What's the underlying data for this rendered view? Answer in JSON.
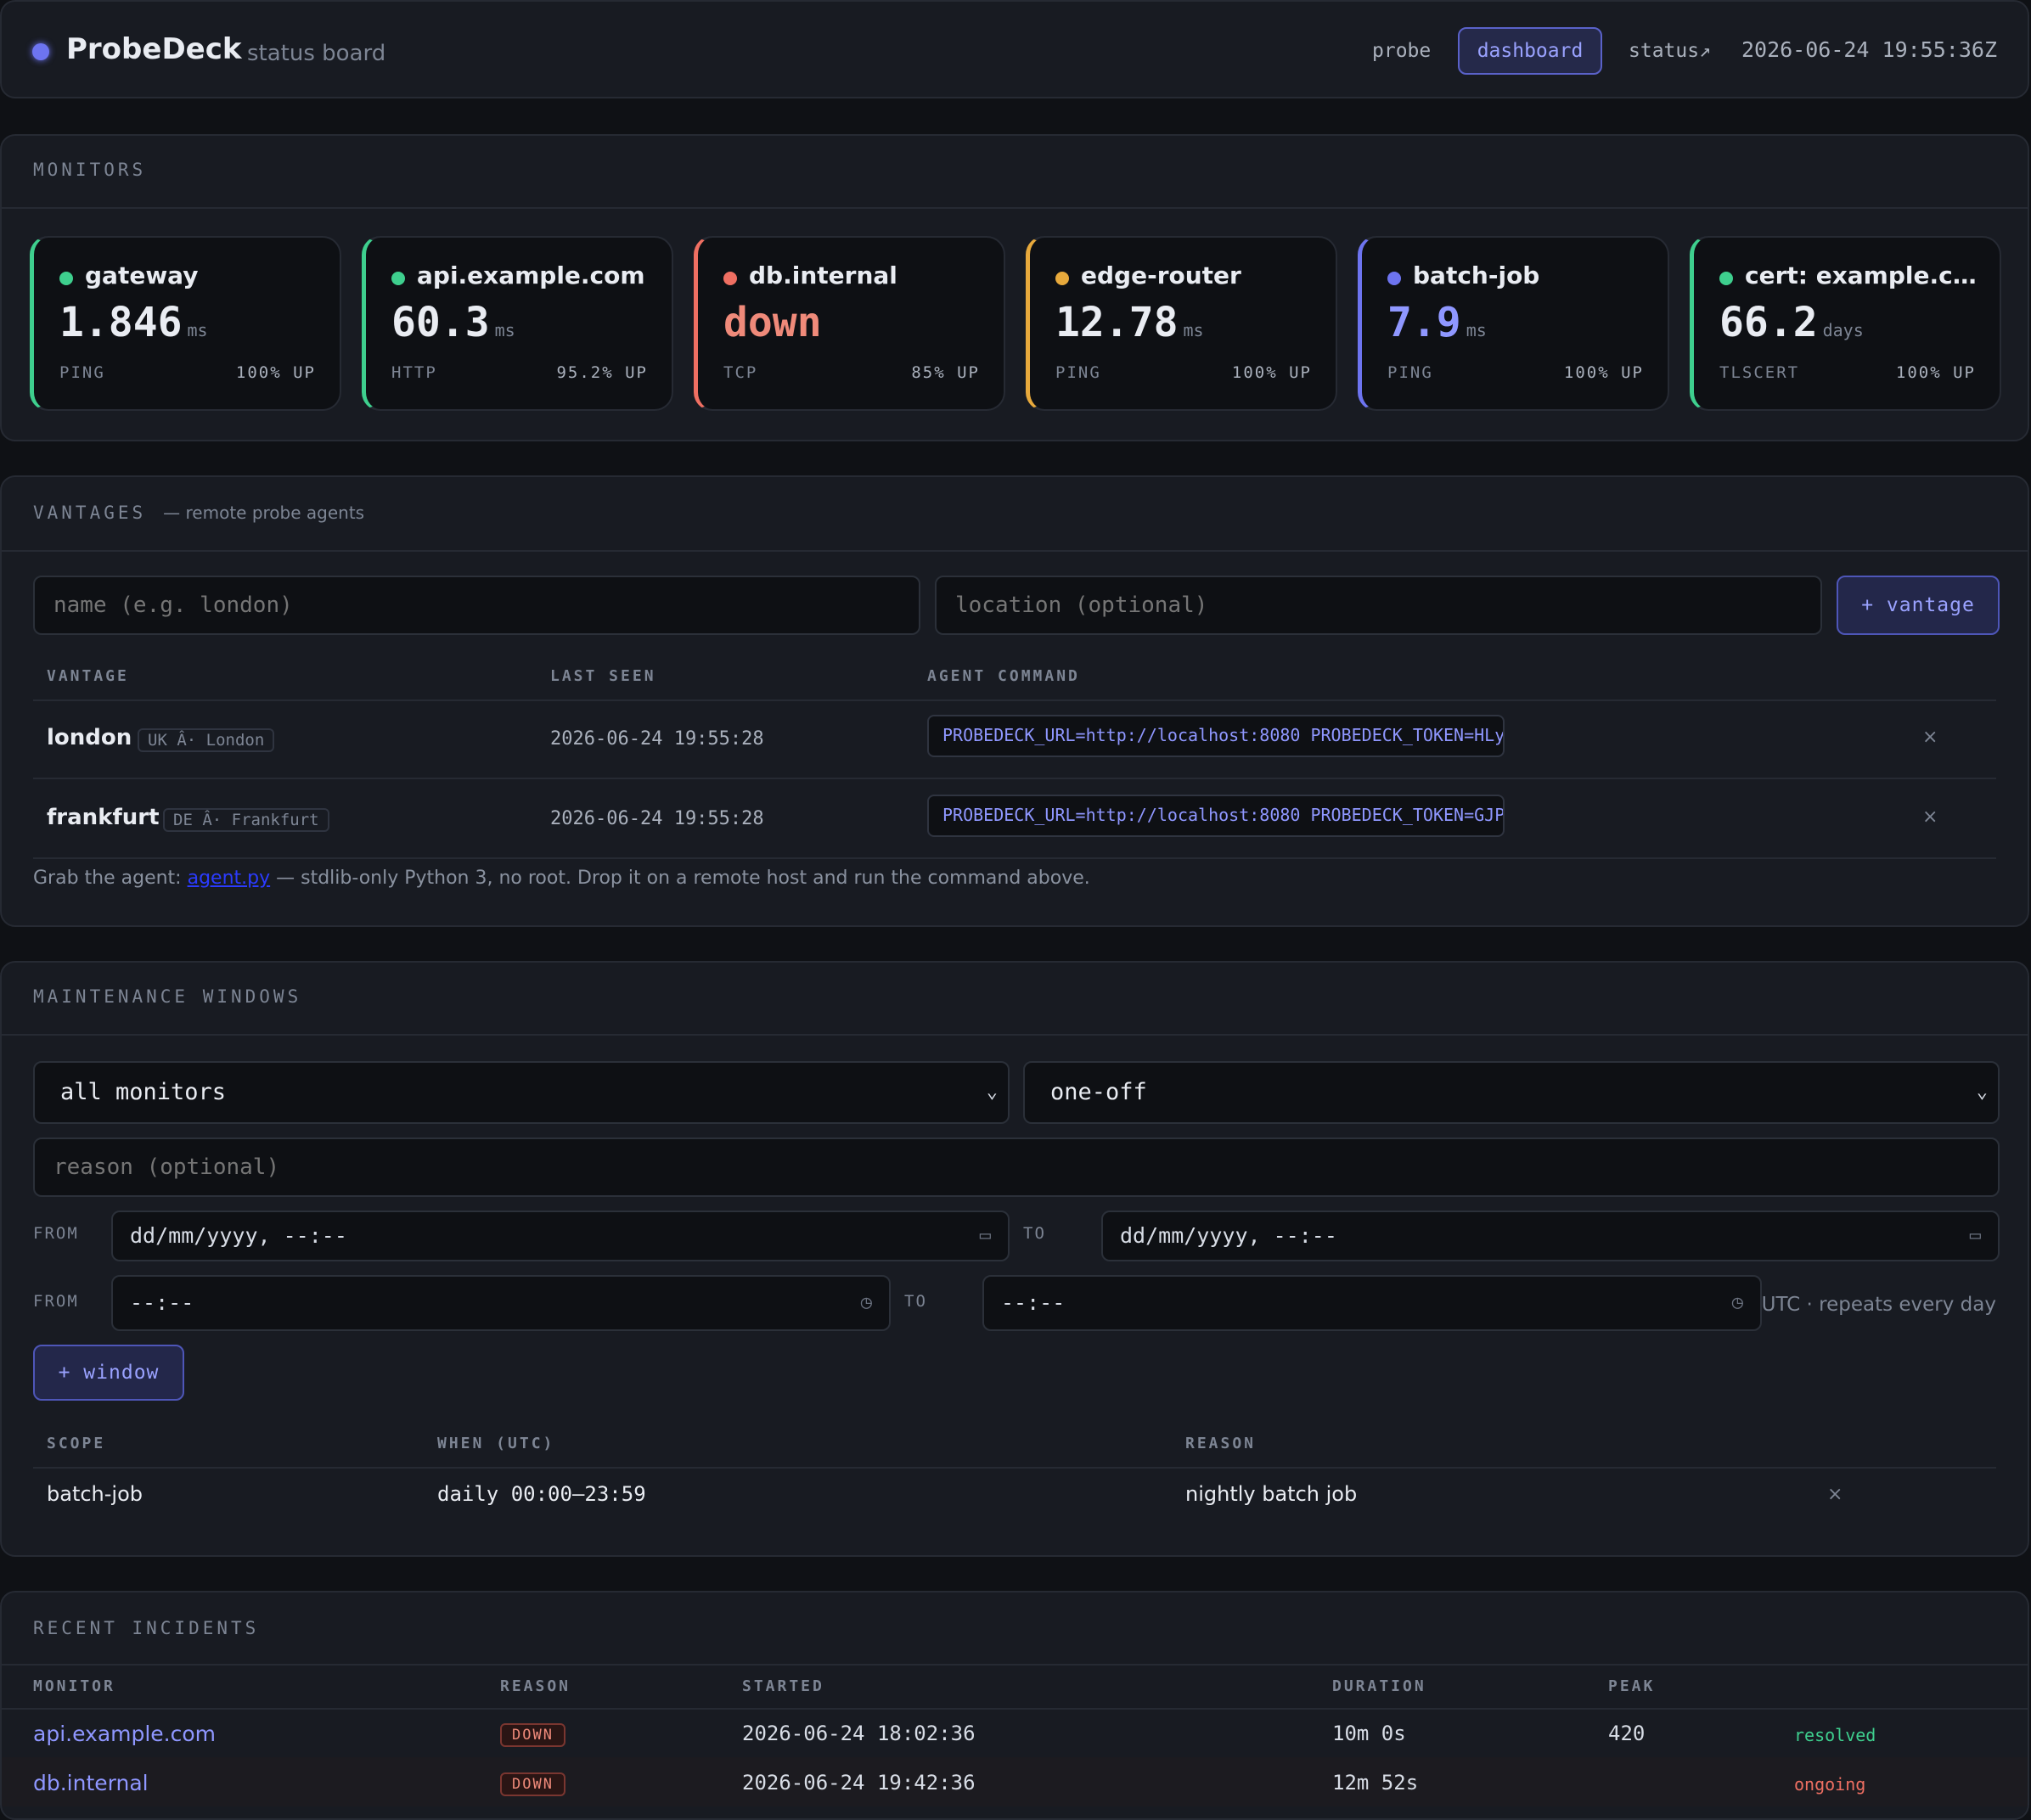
{
  "header": {
    "brand": "ProbeDeck",
    "subtitle": "status board",
    "nav": [
      "probe",
      "dashboard",
      "status↗"
    ],
    "active_nav": "dashboard",
    "timestamp": "2026-06-24 19:55:36Z"
  },
  "monitors": {
    "title": "MONITORS",
    "cards": [
      {
        "name": "gateway",
        "value": "1.846",
        "unit": "ms",
        "type": "PING",
        "uptime": "100% UP",
        "status": "up",
        "color": "#3ecf8e"
      },
      {
        "name": "api.example.com",
        "value": "60.3",
        "unit": "ms",
        "type": "HTTP",
        "uptime": "95.2% UP",
        "status": "up",
        "color": "#3ecf8e"
      },
      {
        "name": "db.internal",
        "value": "down",
        "unit": "",
        "type": "TCP",
        "uptime": "85% UP",
        "status": "down",
        "color": "#ef6f62"
      },
      {
        "name": "edge-router",
        "value": "12.78",
        "unit": "ms",
        "type": "PING",
        "uptime": "100% UP",
        "status": "degraded",
        "color": "#e7a93c"
      },
      {
        "name": "batch-job",
        "value": "7.9",
        "unit": "ms",
        "type": "PING",
        "uptime": "100% UP",
        "status": "maintenance",
        "color": "#6d74f0"
      },
      {
        "name": "cert: example.com",
        "value": "66.2",
        "unit": "days",
        "type": "TLSCERT",
        "uptime": "100% UP",
        "status": "up",
        "color": "#3ecf8e"
      }
    ]
  },
  "vantages": {
    "title": "VANTAGES",
    "subtitle": "— remote probe agents",
    "name_placeholder": "name (e.g. london)",
    "location_placeholder": "location (optional)",
    "add_button": "+ vantage",
    "columns": [
      "VANTAGE",
      "LAST SEEN",
      "AGENT COMMAND"
    ],
    "rows": [
      {
        "name": "london",
        "location": "UK Â· London",
        "last_seen": "2026-06-24 19:55:28",
        "command": "PROBEDECK_URL=http://localhost:8080 PROBEDECK_TOKEN=HLy",
        "remove": "×"
      },
      {
        "name": "frankfurt",
        "location": "DE Â· Frankfurt",
        "last_seen": "2026-06-24 19:55:28",
        "command": "PROBEDECK_URL=http://localhost:8080 PROBEDECK_TOKEN=GJP",
        "remove": "×"
      }
    ],
    "note_prefix": "Grab the agent: ",
    "note_link": "agent.py",
    "note_suffix": " — stdlib-only Python 3, no root. Drop it on a remote host and run the command above."
  },
  "maintenance": {
    "title": "MAINTENANCE WINDOWS",
    "scope_select": "all monitors",
    "kind_select": "one-off",
    "reason_placeholder": "reason (optional)",
    "from_label": "FROM",
    "to_label": "TO",
    "datetime_placeholder": "dd/mm/yyyy, --:--",
    "time_placeholder": "--:--",
    "utc_note": "UTC · repeats every day",
    "add_button": "+ window",
    "columns": [
      "SCOPE",
      "WHEN (UTC)",
      "REASON"
    ],
    "rows": [
      {
        "scope": "batch-job",
        "when": "daily 00:00–23:59",
        "reason": "nightly batch job",
        "remove": "×"
      }
    ]
  },
  "incidents": {
    "title": "RECENT INCIDENTS",
    "columns": [
      "MONITOR",
      "REASON",
      "STARTED",
      "DURATION",
      "PEAK"
    ],
    "rows": [
      {
        "monitor": "api.example.com",
        "reason": "DOWN",
        "started": "2026-06-24 18:02:36",
        "duration": "10m 0s",
        "peak": "420",
        "state": "resolved",
        "state_color": "#3ecf8e"
      },
      {
        "monitor": "db.internal",
        "reason": "DOWN",
        "started": "2026-06-24 19:42:36",
        "duration": "12m 52s",
        "peak": "",
        "state": "ongoing",
        "state_color": "#ef6f62"
      }
    ]
  }
}
